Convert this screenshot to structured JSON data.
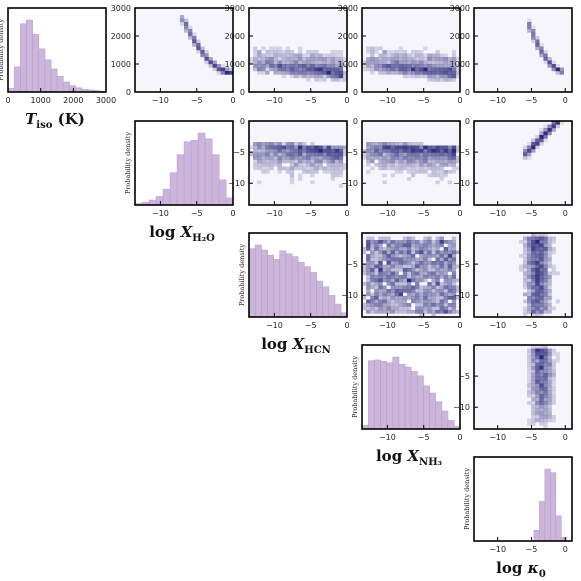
{
  "chart_data": {
    "type": "corner",
    "hist_color": "#c2a8d4",
    "density_color": "#2d2a7a",
    "ylabel_hist": "Probability density",
    "parameters": [
      {
        "key": "T",
        "label": "T",
        "sub": "iso",
        "unit": " (K)",
        "prefix": "",
        "range": [
          0,
          3000
        ],
        "ticks": [
          0,
          1000,
          2000,
          3000
        ],
        "hist": [
          0.05,
          0.35,
          0.95,
          1.0,
          0.8,
          0.6,
          0.45,
          0.32,
          0.22,
          0.14,
          0.09,
          0.06,
          0.04,
          0.03,
          0.02,
          0.01
        ]
      },
      {
        "key": "H2O",
        "label": "X",
        "sub": "H₂O",
        "unit": "",
        "prefix": "log ",
        "range": [
          -13.5,
          0
        ],
        "ticks": [
          -10,
          -5,
          0
        ],
        "hist": [
          0.02,
          0.04,
          0.07,
          0.12,
          0.22,
          0.45,
          0.7,
          0.88,
          0.9,
          1.0,
          0.92,
          0.7,
          0.35,
          0.1
        ]
      },
      {
        "key": "HCN",
        "label": "X",
        "sub": "HCN",
        "unit": "",
        "prefix": "log ",
        "range": [
          -13.5,
          0
        ],
        "ticks": [
          -10,
          -5,
          0
        ],
        "hist": [
          0.95,
          1.0,
          0.93,
          0.86,
          0.8,
          0.92,
          0.88,
          0.84,
          0.76,
          0.7,
          0.62,
          0.5,
          0.42,
          0.3,
          0.18,
          0.06
        ]
      },
      {
        "key": "NH3",
        "label": "X",
        "sub": "NH₃",
        "unit": "",
        "prefix": "log ",
        "range": [
          -13.5,
          0
        ],
        "ticks": [
          -10,
          -5,
          0
        ],
        "hist": [
          0.05,
          0.95,
          0.96,
          0.94,
          0.92,
          1.0,
          0.9,
          0.86,
          0.8,
          0.74,
          0.6,
          0.5,
          0.38,
          0.25,
          0.12,
          0.04
        ]
      },
      {
        "key": "kappa",
        "label": "κ",
        "sub": "0",
        "unit": "",
        "prefix": "log ",
        "range": [
          -13.5,
          1
        ],
        "ticks": [
          -10,
          -5,
          0
        ],
        "hist": [
          0,
          0,
          0,
          0,
          0,
          0,
          0,
          0,
          0,
          0,
          0,
          0.15,
          0.55,
          1.0,
          0.95,
          0.35,
          0.05,
          0
        ]
      }
    ],
    "scatter_ylim": {
      "T": [
        0,
        3000
      ],
      "H2O": [
        -13.5,
        0
      ],
      "HCN": [
        -13.5,
        0
      ],
      "NH3": [
        -13.5,
        0
      ]
    },
    "scatter_yticks": {
      "T": [
        0,
        1000,
        2000,
        3000
      ],
      "H2O": [
        -10,
        -5,
        0
      ],
      "HCN": [
        -10,
        -5
      ],
      "NH3": [
        -10,
        -5
      ]
    },
    "scatter_xticks": {
      "H2O": [
        -10,
        -5,
        0
      ],
      "HCN": [
        -10,
        -5,
        0
      ],
      "NH3": [
        -10,
        -5,
        0
      ],
      "kappa": [
        -10,
        -5,
        0
      ]
    }
  }
}
